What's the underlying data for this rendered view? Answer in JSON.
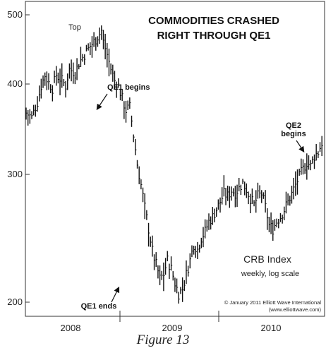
{
  "chart_data": {
    "type": "bar",
    "style": "weekly high-low-close bars",
    "title_lines": [
      "COMMODITIES CRASHED",
      "RIGHT THROUGH QE1"
    ],
    "index_name": "CRB Index",
    "index_subtitle": "weekly, log scale",
    "y_scale": "log",
    "ylim": [
      195,
      520
    ],
    "y_ticks": [
      200,
      300,
      400,
      500
    ],
    "x_period_labels": [
      "2008",
      "2009",
      "2010"
    ],
    "annotations": [
      {
        "text": [
          "Top"
        ],
        "x_week": 40,
        "value": 474
      },
      {
        "text": [
          "QE1 begins"
        ],
        "x_week": 56,
        "value": 378
      },
      {
        "text": [
          "QE1 ends"
        ],
        "x_week": 70,
        "value": 206
      },
      {
        "text": [
          "QE2",
          "begins"
        ],
        "x_week": 148,
        "value": 318
      }
    ],
    "copyright_lines": [
      "© January 2011 Elliott Wave International",
      "(www.elliottwave.com)"
    ],
    "anchors": [
      [
        0,
        365
      ],
      [
        3,
        360
      ],
      [
        6,
        378
      ],
      [
        8,
        398
      ],
      [
        10,
        412
      ],
      [
        12,
        402
      ],
      [
        14,
        395
      ],
      [
        16,
        412
      ],
      [
        19,
        405
      ],
      [
        21,
        398
      ],
      [
        23,
        420
      ],
      [
        26,
        415
      ],
      [
        28,
        428
      ],
      [
        31,
        440
      ],
      [
        34,
        452
      ],
      [
        37,
        462
      ],
      [
        39,
        470
      ],
      [
        40,
        475
      ],
      [
        41,
        458
      ],
      [
        43,
        440
      ],
      [
        45,
        420
      ],
      [
        47,
        405
      ],
      [
        49,
        398
      ],
      [
        51,
        382
      ],
      [
        53,
        368
      ],
      [
        55,
        372
      ],
      [
        57,
        340
      ],
      [
        59,
        310
      ],
      [
        61,
        290
      ],
      [
        63,
        270
      ],
      [
        65,
        252
      ],
      [
        67,
        235
      ],
      [
        69,
        225
      ],
      [
        71,
        215
      ],
      [
        73,
        218
      ],
      [
        75,
        228
      ],
      [
        77,
        222
      ],
      [
        79,
        212
      ],
      [
        81,
        205
      ],
      [
        83,
        208
      ],
      [
        85,
        218
      ],
      [
        87,
        228
      ],
      [
        89,
        240
      ],
      [
        91,
        236
      ],
      [
        93,
        245
      ],
      [
        95,
        250
      ],
      [
        97,
        258
      ],
      [
        99,
        262
      ],
      [
        101,
        268
      ],
      [
        103,
        275
      ],
      [
        105,
        282
      ],
      [
        107,
        280
      ],
      [
        109,
        285
      ],
      [
        111,
        283
      ],
      [
        113,
        287
      ],
      [
        115,
        292
      ],
      [
        117,
        286
      ],
      [
        119,
        278
      ],
      [
        121,
        272
      ],
      [
        123,
        280
      ],
      [
        125,
        282
      ],
      [
        127,
        270
      ],
      [
        129,
        255
      ],
      [
        131,
        252
      ],
      [
        133,
        258
      ],
      [
        135,
        262
      ],
      [
        137,
        268
      ],
      [
        139,
        275
      ],
      [
        141,
        282
      ],
      [
        143,
        290
      ],
      [
        145,
        298
      ],
      [
        147,
        305
      ],
      [
        149,
        312
      ],
      [
        151,
        308
      ],
      [
        153,
        318
      ],
      [
        155,
        322
      ],
      [
        157,
        332
      ]
    ]
  },
  "caption": "Figure 13"
}
